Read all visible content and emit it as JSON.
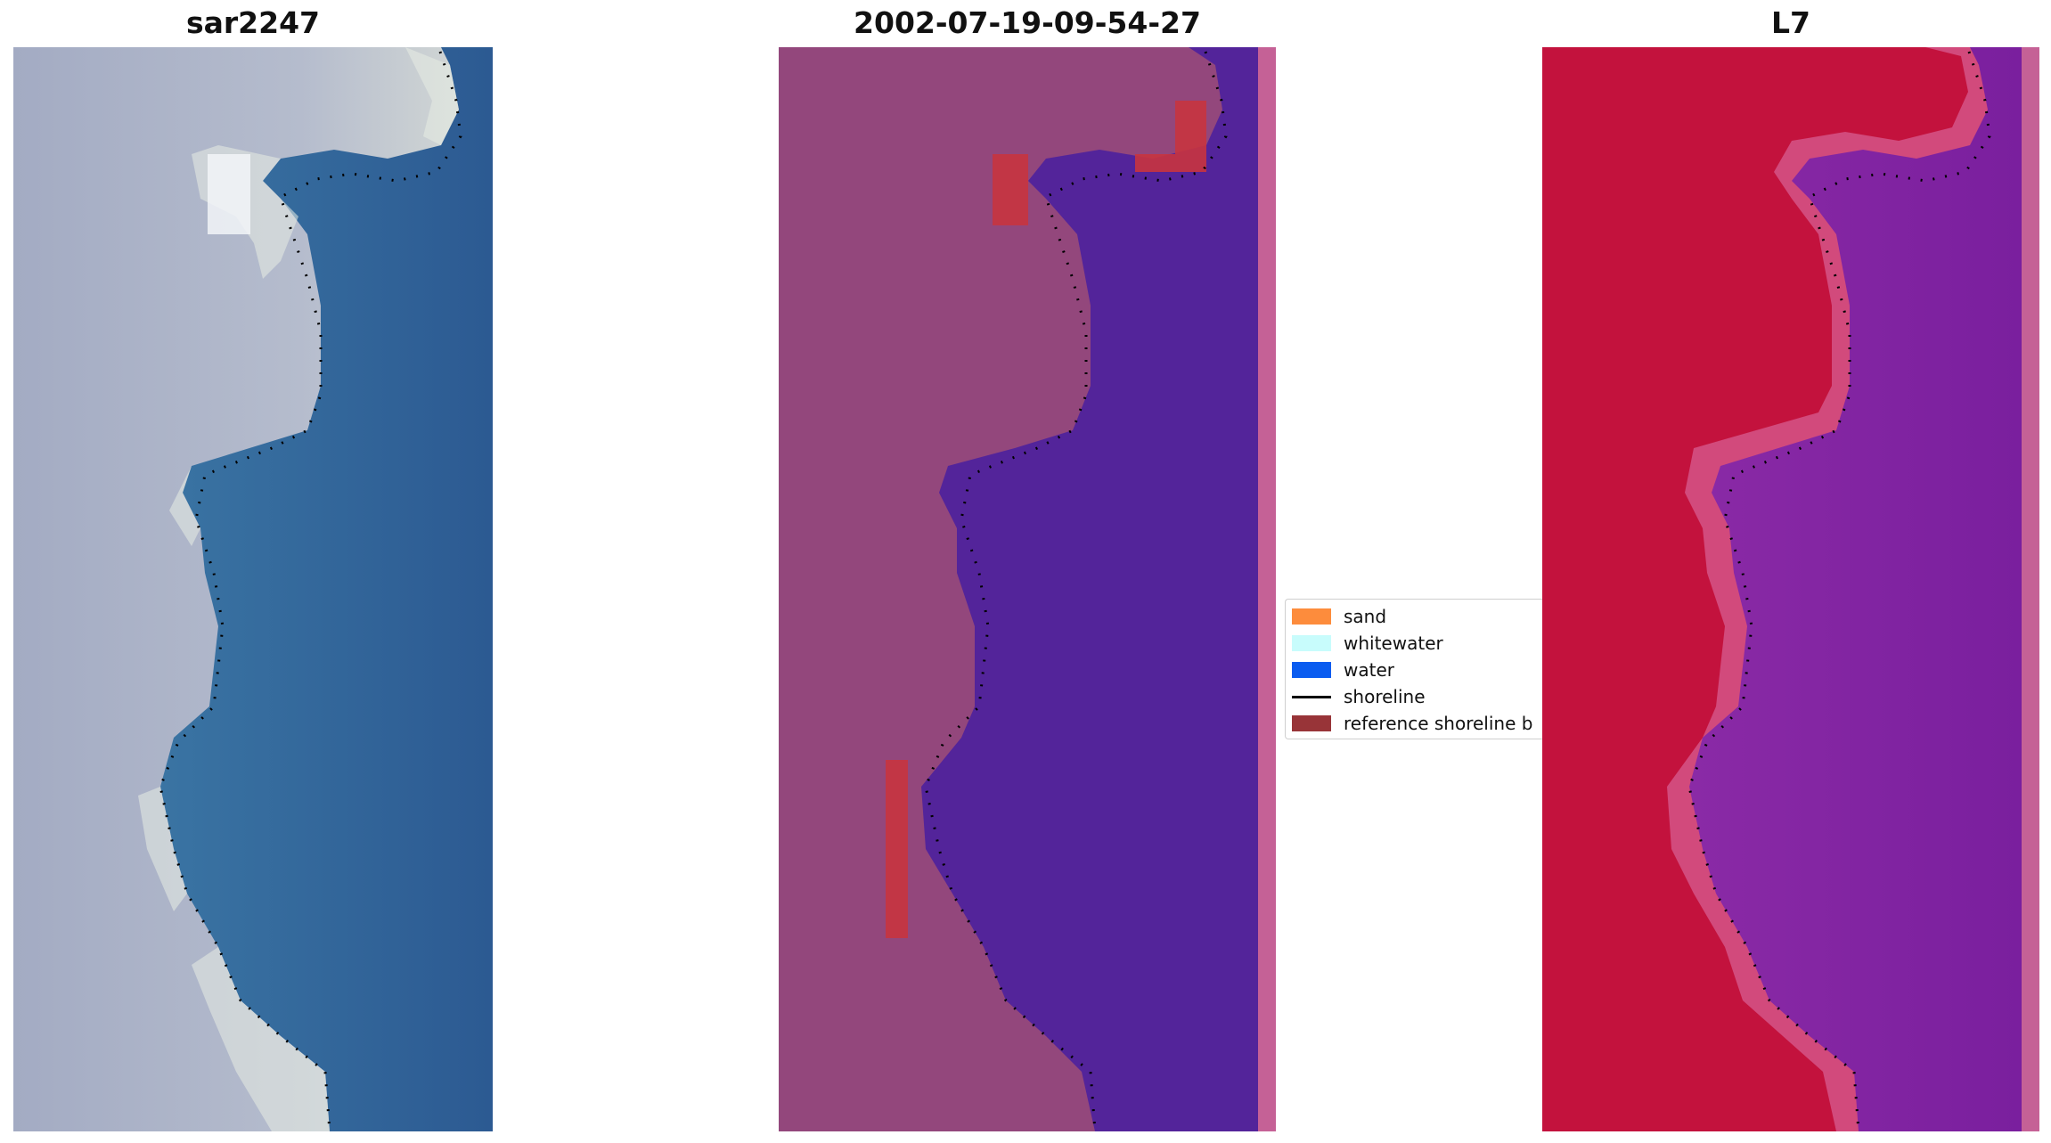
{
  "panels": [
    {
      "title": "sar2247"
    },
    {
      "title": "2002-07-19-09-54-27"
    },
    {
      "title": "L7"
    }
  ],
  "legend": {
    "items": [
      {
        "label": "sand",
        "color": "#fd8c3c"
      },
      {
        "label": "whitewater",
        "color": "#c8fcfc"
      },
      {
        "label": "water",
        "color": "#0a5cf0"
      },
      {
        "label": "shoreline",
        "color": "#000000"
      },
      {
        "label": "reference shoreline b",
        "color": "#983438"
      }
    ]
  },
  "colors": {
    "rgb_land": "#b5bccd",
    "rgb_water": "#2f5e95",
    "classif_land": "#93477c",
    "classif_water": "#53249a",
    "classif_buffer": "#c8343f",
    "classif_edge": "#c56196",
    "falsecolor_land": "#c3123d",
    "falsecolor_water": "#7a1f9e",
    "shoreline": "#000000"
  }
}
